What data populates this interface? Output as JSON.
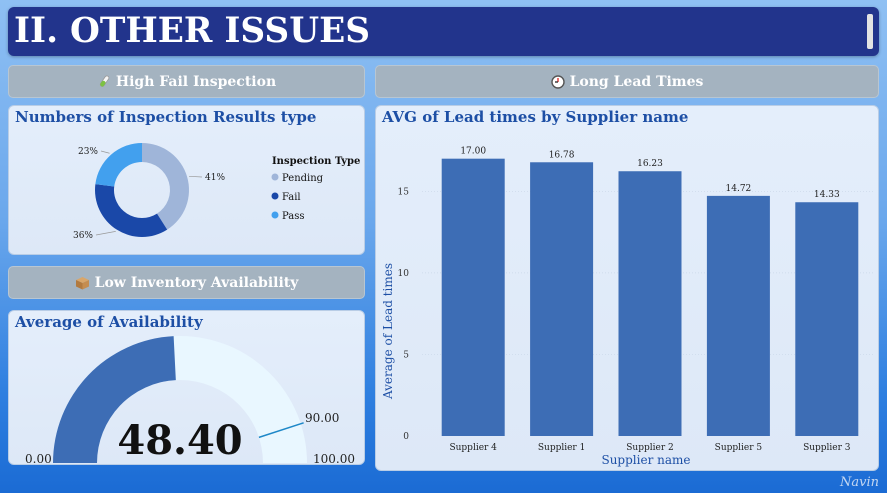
{
  "header": {
    "title": "II. OTHER ISSUES"
  },
  "sections": {
    "high_fail": {
      "label": "High Fail Inspection",
      "icon": "test-tube-icon"
    },
    "long_lead": {
      "label": "Long Lead Times",
      "icon": "clock-icon"
    },
    "low_inventory": {
      "label": "Low Inventory Availability",
      "icon": "box-icon"
    }
  },
  "signature": "Navin",
  "colors": {
    "pending": "#9fb5d9",
    "fail": "#1a48a8",
    "pass": "#42a0ee",
    "bar": "#3d6db5",
    "gauge_fill": "#3d6db5",
    "gauge_track": "#e9f7ff",
    "target_line": "#1e88c8"
  },
  "chart_data": [
    {
      "type": "pie",
      "variant": "donut",
      "title": "Numbers of Inspection Results type",
      "legend_title": "Inspection Type",
      "legend_position": "right",
      "labels": [
        "Pending",
        "Fail",
        "Pass"
      ],
      "values": [
        41,
        36,
        23
      ],
      "value_labels": [
        "41%",
        "36%",
        "23%"
      ]
    },
    {
      "type": "bar",
      "title": "AVG of Lead times by Supplier name",
      "xlabel": "Supplier name",
      "ylabel": "Average of Lead times",
      "categories": [
        "Supplier 4",
        "Supplier 1",
        "Supplier 2",
        "Supplier 5",
        "Supplier 3"
      ],
      "values": [
        17.0,
        16.78,
        16.23,
        14.72,
        14.33
      ],
      "value_labels": [
        "17.00",
        "16.78",
        "16.23",
        "14.72",
        "14.33"
      ],
      "ylim": [
        0,
        17.9
      ],
      "yticks": [
        0,
        5,
        10,
        15
      ],
      "grid": true
    },
    {
      "type": "gauge",
      "title": "Average of Availability",
      "value": 48.4,
      "value_label": "48.40",
      "min": 0,
      "max": 100,
      "target": 90,
      "min_label": "0.00",
      "max_label": "100.00",
      "target_label": "90.00"
    }
  ]
}
